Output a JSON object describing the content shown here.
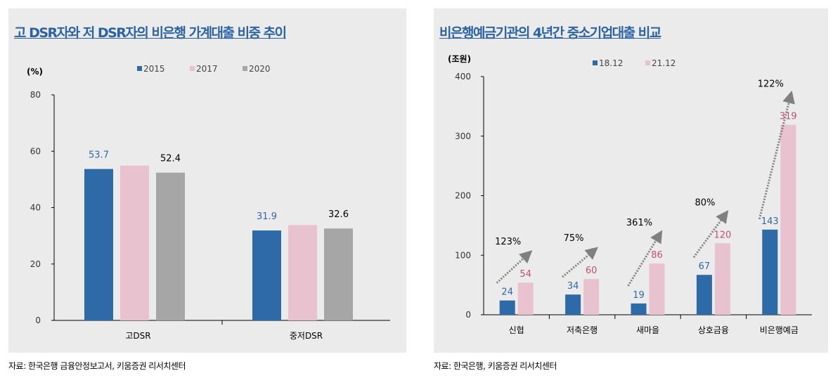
{
  "chart_data": [
    {
      "type": "bar",
      "title": "고 DSR자와 저 DSR자의 비은행 가계대출 비중 추이",
      "ylabel": "(%)",
      "ylim": [
        0,
        80
      ],
      "yticks": [
        0,
        20,
        40,
        60,
        80
      ],
      "categories": [
        "고DSR",
        "중저DSR"
      ],
      "series": [
        {
          "name": "2015",
          "values": [
            53.7,
            31.9
          ],
          "labels": [
            "53.7",
            "31.9"
          ],
          "color": "#2e6aa8",
          "label_color": "#2e6aa8"
        },
        {
          "name": "2017",
          "values": [
            54.9,
            33.8
          ],
          "labels": [
            "",
            ""
          ],
          "color": "#e8c2cf",
          "label_color": "#c0506e"
        },
        {
          "name": "2020",
          "values": [
            52.4,
            32.6
          ],
          "labels": [
            "52.4",
            "32.6"
          ],
          "color": "#a6a6a6",
          "label_color": "#000000"
        }
      ],
      "legend": "top",
      "source": "자료: 한국은행 금융안정보고서, 키움증권 리서치센터"
    },
    {
      "type": "bar",
      "title": "비은행예금기관의 4년간 중소기업대출 비교",
      "ylabel": "(조원)",
      "ylim": [
        0,
        400
      ],
      "yticks": [
        0,
        100,
        200,
        300,
        400
      ],
      "categories": [
        "신협",
        "저축은행",
        "새마을",
        "상호금융",
        "비은행예금"
      ],
      "series": [
        {
          "name": "18.12",
          "values": [
            24,
            34,
            19,
            67,
            143
          ],
          "color": "#2e6aa8",
          "label_color": "#2e6aa8"
        },
        {
          "name": "21.12",
          "values": [
            54,
            60,
            86,
            120,
            319
          ],
          "color": "#e8c2cf",
          "label_color": "#c0506e"
        }
      ],
      "growth_labels": [
        "123%",
        "75%",
        "361%",
        "80%",
        "122%"
      ],
      "legend": "top",
      "source": "자료: 한국은행, 키움증권 리서치센터"
    }
  ]
}
